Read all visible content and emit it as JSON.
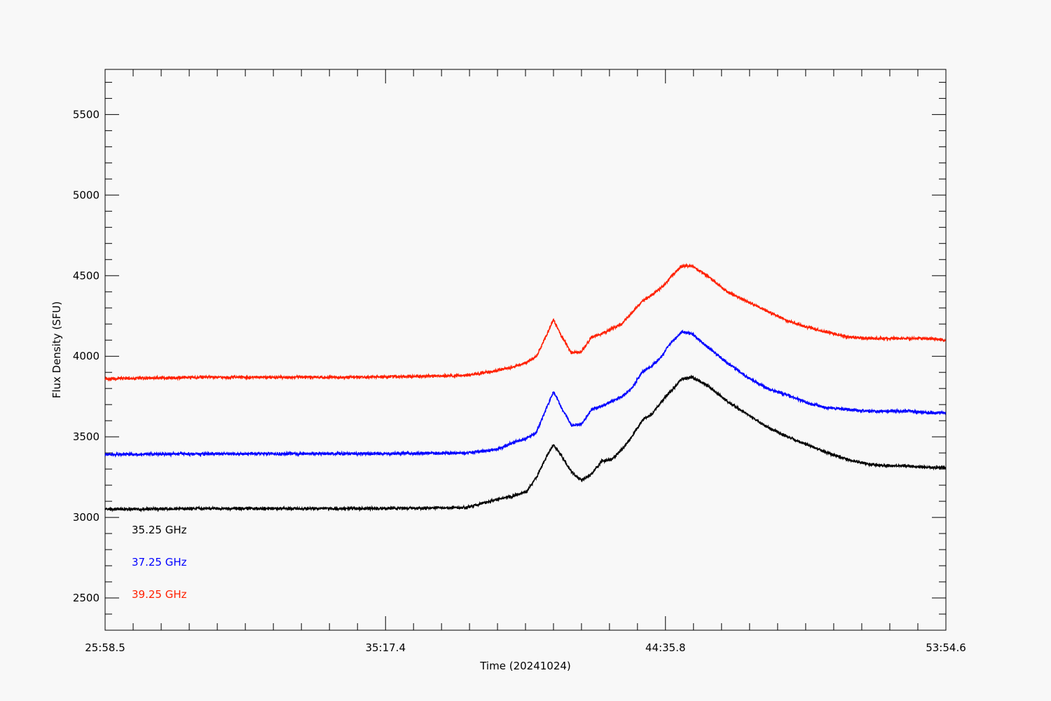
{
  "chart_data": {
    "type": "line",
    "title": "",
    "xlabel": "Time (20241024)",
    "ylabel": "Flux Density (SFU)",
    "xticks": [
      {
        "label": "25:58.5",
        "t": 0
      },
      {
        "label": "35:17.4",
        "t": 559
      },
      {
        "label": "44:35.8",
        "t": 1117
      },
      {
        "label": "53:54.6",
        "t": 1676
      }
    ],
    "xlim_seconds_from_25_58_5": [
      0,
      1676
    ],
    "ylim": [
      2300,
      5780
    ],
    "yticks": [
      2500,
      3000,
      3500,
      4000,
      4500,
      5000,
      5500
    ],
    "grid": false,
    "legend_position": "bottom-left",
    "series": [
      {
        "name": "35.25 GHz",
        "color": "#000000",
        "t": [
          0,
          200,
          500,
          720,
          780,
          810,
          840,
          860,
          880,
          894,
          910,
          930,
          950,
          970,
          990,
          1010,
          1030,
          1050,
          1070,
          1090,
          1110,
          1120,
          1130,
          1150,
          1170,
          1200,
          1240,
          1280,
          1320,
          1360,
          1400,
          1440,
          1480,
          1520,
          1560,
          1600,
          1640,
          1675
        ],
        "values": [
          3050,
          3055,
          3055,
          3060,
          3110,
          3130,
          3160,
          3250,
          3380,
          3450,
          3380,
          3280,
          3230,
          3270,
          3350,
          3360,
          3420,
          3500,
          3600,
          3640,
          3720,
          3760,
          3790,
          3860,
          3870,
          3820,
          3720,
          3640,
          3560,
          3500,
          3450,
          3400,
          3360,
          3330,
          3320,
          3320,
          3310,
          3310
        ]
      },
      {
        "name": "37.25 GHz",
        "color": "#0000ff",
        "t": [
          0,
          200,
          500,
          720,
          780,
          810,
          840,
          860,
          880,
          894,
          910,
          930,
          950,
          970,
          990,
          1010,
          1030,
          1050,
          1070,
          1090,
          1110,
          1120,
          1130,
          1150,
          1170,
          1200,
          1240,
          1280,
          1320,
          1360,
          1400,
          1440,
          1480,
          1520,
          1560,
          1600,
          1640,
          1675
        ],
        "values": [
          3390,
          3395,
          3395,
          3400,
          3420,
          3460,
          3490,
          3530,
          3680,
          3780,
          3680,
          3570,
          3580,
          3670,
          3690,
          3720,
          3750,
          3800,
          3900,
          3940,
          4000,
          4050,
          4090,
          4150,
          4140,
          4060,
          3960,
          3870,
          3800,
          3760,
          3710,
          3680,
          3670,
          3660,
          3660,
          3660,
          3650,
          3650
        ]
      },
      {
        "name": "39.25 GHz",
        "color": "#ff2000",
        "t": [
          0,
          200,
          500,
          720,
          780,
          810,
          840,
          860,
          880,
          894,
          910,
          930,
          950,
          970,
          990,
          1010,
          1030,
          1050,
          1070,
          1090,
          1110,
          1120,
          1130,
          1150,
          1170,
          1200,
          1240,
          1280,
          1320,
          1360,
          1400,
          1440,
          1480,
          1520,
          1560,
          1600,
          1640,
          1675
        ],
        "values": [
          3860,
          3870,
          3870,
          3880,
          3910,
          3930,
          3960,
          4000,
          4130,
          4230,
          4120,
          4020,
          4030,
          4120,
          4140,
          4170,
          4200,
          4270,
          4340,
          4380,
          4430,
          4460,
          4500,
          4560,
          4560,
          4500,
          4400,
          4340,
          4280,
          4220,
          4180,
          4150,
          4120,
          4110,
          4110,
          4110,
          4110,
          4100
        ]
      }
    ]
  }
}
